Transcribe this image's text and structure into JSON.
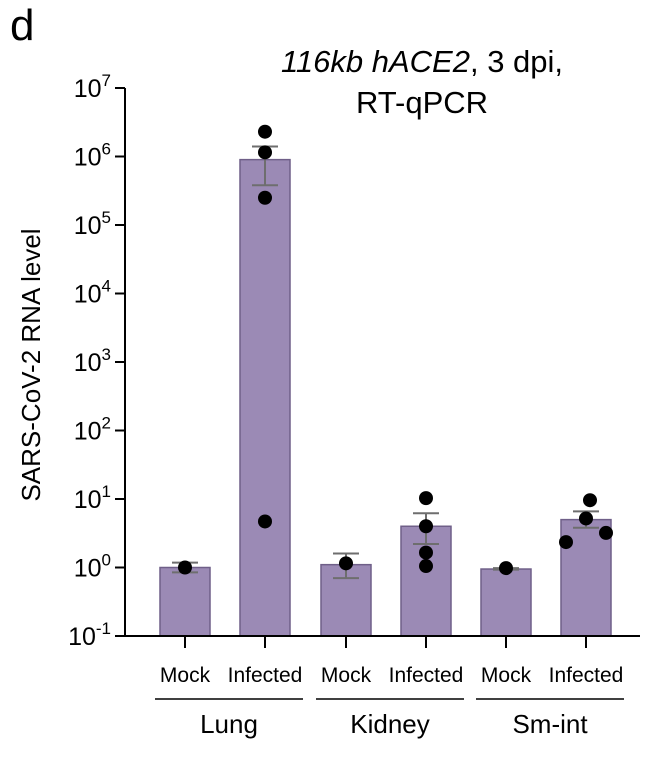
{
  "panel_label": "d",
  "colors": {
    "bar_fill": "#9b8ab5",
    "bar_stroke": "#6f5f88",
    "error_bar": "#6e6e6e",
    "points": "#000000",
    "axis": "#000000"
  },
  "chart_data": {
    "type": "bar",
    "title_line1_italic": "116kb hACE2",
    "title_line1_rest": ", 3 dpi,",
    "title_line2": "RT-qPCR",
    "ylabel": "SARS-CoV-2 RNA level",
    "yscale": "log",
    "ylim": [
      0.1,
      10000000
    ],
    "yticks": [
      {
        "base": "10",
        "exp": "7",
        "value": 10000000
      },
      {
        "base": "10",
        "exp": "6",
        "value": 1000000
      },
      {
        "base": "10",
        "exp": "5",
        "value": 100000
      },
      {
        "base": "10",
        "exp": "4",
        "value": 10000
      },
      {
        "base": "10",
        "exp": "3",
        "value": 1000
      },
      {
        "base": "10",
        "exp": "2",
        "value": 100
      },
      {
        "base": "10",
        "exp": "1",
        "value": 10
      },
      {
        "base": "10",
        "exp": "0",
        "value": 1
      },
      {
        "base": "10",
        "exp": "-1",
        "value": 0.1
      }
    ],
    "categories": [
      "Mock",
      "Infected",
      "Mock",
      "Infected",
      "Mock",
      "Infected"
    ],
    "groups": [
      {
        "label": "Lung",
        "categories": [
          0,
          1
        ]
      },
      {
        "label": "Kidney",
        "categories": [
          2,
          3
        ]
      },
      {
        "label": "Sm-int",
        "categories": [
          4,
          5
        ]
      }
    ],
    "bars": [
      {
        "value": 1.0,
        "err_low": 0.85,
        "err_high": 1.18,
        "points": [
          1.0
        ]
      },
      {
        "value": 900000,
        "err_low": 380000,
        "err_high": 1400000,
        "points": [
          2300000,
          1150000,
          250000,
          4.7
        ]
      },
      {
        "value": 1.1,
        "err_low": 0.7,
        "err_high": 1.6,
        "points": [
          1.15
        ]
      },
      {
        "value": 4.0,
        "err_low": 2.2,
        "err_high": 6.2,
        "points": [
          10.3,
          4.0,
          1.65,
          1.05
        ]
      },
      {
        "value": 0.95,
        "err_low": 0.93,
        "err_high": 0.98,
        "points": [
          0.98
        ]
      },
      {
        "value": 5.0,
        "err_low": 3.8,
        "err_high": 6.6,
        "points": [
          9.6,
          5.2,
          3.2,
          2.35
        ]
      }
    ],
    "grid": false,
    "legend": "none"
  }
}
